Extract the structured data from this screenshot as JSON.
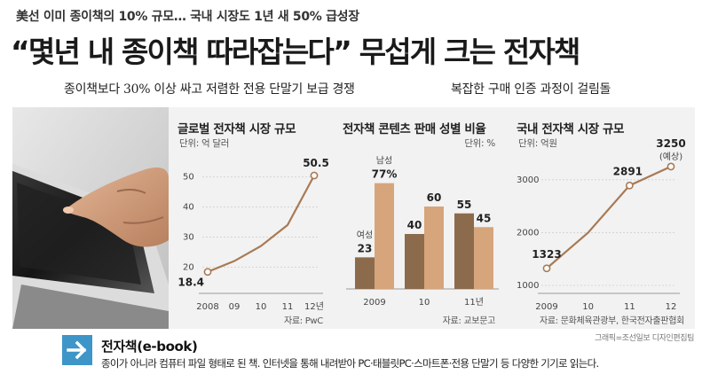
{
  "kicker": "美선 이미 종이책의 10% 규모… 국내 시장도 1년 새 50% 급성장",
  "headline": "“몇년 내 종이책 따라잡는다” 무섭게 크는 전자책",
  "subheads": {
    "left": "종이책보다 30% 이상 싸고 저렴한 전용 단말기 보급 경쟁",
    "right": "복잡한 구매 인증 과정이 걸림돌"
  },
  "colors": {
    "line": "#a87a55",
    "bar_dark": "#8c6b4d",
    "bar_light": "#d6a57c",
    "arrow_box": "#3e95c8"
  },
  "chart_data": [
    {
      "type": "line",
      "title": "글로벌 전자책 시장 규모",
      "unit": "단위: 억 달러",
      "source": "자료: PwC",
      "x": [
        "2008",
        "09",
        "10",
        "11",
        "12년"
      ],
      "values": [
        18.4,
        22,
        27,
        34,
        50.5
      ],
      "labeled": {
        "0": "18.4",
        "4": "50.5"
      },
      "yticks": [
        20,
        30,
        40,
        50
      ],
      "ylim": [
        13,
        57
      ]
    },
    {
      "type": "bar",
      "title": "전자책 콘텐츠 판매 성별 비율",
      "unit": "단위: %",
      "source": "자료: 교보문고",
      "categories": [
        "2009",
        "10",
        "11년"
      ],
      "series": [
        {
          "name": "여성",
          "values": [
            23,
            40,
            55
          ],
          "labels": [
            "23",
            "40",
            "55"
          ]
        },
        {
          "name": "남성",
          "values": [
            77,
            60,
            45
          ],
          "labels": [
            "77%",
            "60",
            "45"
          ]
        }
      ],
      "ylim": [
        0,
        100
      ]
    },
    {
      "type": "line",
      "title": "국내 전자책 시장 규모",
      "unit": "단위: 억원",
      "source": "자료: 문화체육관광부, 한국전자출판협회",
      "x": [
        "2009",
        "10",
        "11",
        "12"
      ],
      "values": [
        1323,
        2000,
        2891,
        3250
      ],
      "labeled": {
        "0": "1323",
        "2": "2891",
        "3": "3250"
      },
      "annotation": "(예상)",
      "yticks": [
        1000,
        2000,
        3000
      ],
      "ylim": [
        950,
        3450
      ]
    }
  ],
  "credit": "그래픽=조선일보 디자인편집팀",
  "definition": {
    "title": "전자책(e-book)",
    "body": "종이가 아니라 컴퓨터 파일 형태로 된 책. 인터넷을 통해 내려받아 PC·태블릿PC·스마트폰·전용 단말기 등 다양한 기기로 읽는다."
  }
}
